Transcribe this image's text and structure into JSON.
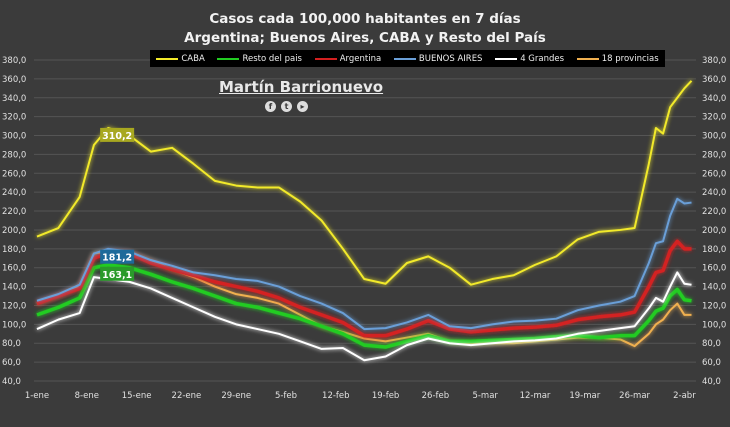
{
  "chart_data": {
    "type": "line",
    "title": "Casos cada 100,000  habitantes en 7 días",
    "subtitle": "Argentina; Buenos Aires, CABA y Resto del País",
    "xlabel": "",
    "ylabel": "",
    "ylim": [
      40,
      380
    ],
    "yticks": [
      "40,0",
      "60,0",
      "80,0",
      "100,0",
      "120,0",
      "140,0",
      "160,0",
      "180,0",
      "200,0",
      "220,0",
      "240,0",
      "260,0",
      "280,0",
      "300,0",
      "320,0",
      "340,0",
      "360,0",
      "380,0"
    ],
    "xticks": [
      "1-ene",
      "8-ene",
      "15-ene",
      "22-ene",
      "29-ene",
      "5-feb",
      "12-feb",
      "19-feb",
      "26-feb",
      "5-mar",
      "12-mar",
      "19-mar",
      "26-mar",
      "2-abr"
    ],
    "grid": true,
    "legend_position": "top",
    "x": [
      "1-ene",
      "4-ene",
      "7-ene",
      "9-ene",
      "11-ene",
      "14-ene",
      "17-ene",
      "20-ene",
      "23-ene",
      "26-ene",
      "29-ene",
      "1-feb",
      "4-feb",
      "7-feb",
      "10-feb",
      "13-feb",
      "16-feb",
      "19-feb",
      "22-feb",
      "25-feb",
      "28-feb",
      "3-mar",
      "6-mar",
      "9-mar",
      "12-mar",
      "15-mar",
      "18-mar",
      "21-mar",
      "24-mar",
      "26-mar",
      "28-mar",
      "29-mar",
      "30-mar",
      "31-mar",
      "1-abr",
      "2-abr",
      "3-abr"
    ],
    "series": [
      {
        "name": "CABA",
        "color": "#f2ea2a",
        "values": [
          193,
          202,
          235,
          290,
          308,
          300,
          283,
          287,
          270,
          252,
          247,
          245,
          245,
          230,
          210,
          180,
          148,
          143,
          165,
          172,
          160,
          142,
          148,
          152,
          163,
          172,
          190,
          198,
          200,
          202,
          270,
          308,
          302,
          330,
          340,
          350,
          358
        ]
      },
      {
        "name": "Resto del pais",
        "color": "#22cc22",
        "values": [
          110,
          118,
          128,
          160,
          163,
          160,
          153,
          145,
          138,
          130,
          122,
          118,
          112,
          106,
          98,
          90,
          78,
          76,
          82,
          88,
          82,
          82,
          83,
          84,
          85,
          87,
          88,
          86,
          88,
          88,
          104,
          114,
          117,
          130,
          137,
          126,
          125
        ]
      },
      {
        "name": "Argentina",
        "color": "#d42020",
        "values": [
          122,
          130,
          138,
          170,
          176,
          175,
          165,
          158,
          152,
          145,
          140,
          135,
          128,
          118,
          110,
          102,
          88,
          88,
          95,
          104,
          95,
          92,
          94,
          96,
          97,
          99,
          105,
          108,
          110,
          113,
          140,
          155,
          157,
          178,
          188,
          180,
          180
        ]
      },
      {
        "name": "BUENOS AIRES",
        "color": "#6a9fd8",
        "values": [
          125,
          132,
          142,
          175,
          180,
          177,
          168,
          162,
          155,
          152,
          148,
          146,
          140,
          130,
          122,
          112,
          95,
          96,
          102,
          110,
          98,
          96,
          100,
          103,
          104,
          106,
          115,
          120,
          124,
          130,
          165,
          186,
          188,
          215,
          233,
          228,
          229
        ]
      },
      {
        "name": "4 Grandes",
        "color": "#ffffff",
        "values": [
          95,
          105,
          112,
          150,
          148,
          145,
          138,
          128,
          118,
          108,
          100,
          95,
          90,
          82,
          74,
          75,
          62,
          66,
          78,
          85,
          80,
          78,
          80,
          82,
          83,
          85,
          90,
          93,
          96,
          98,
          117,
          128,
          124,
          140,
          155,
          143,
          142
        ]
      },
      {
        "name": "18 provincias",
        "color": "#f0b050",
        "values": [
          122,
          130,
          140,
          175,
          177,
          176,
          168,
          158,
          150,
          140,
          132,
          128,
          122,
          110,
          98,
          92,
          85,
          82,
          86,
          90,
          82,
          80,
          80,
          80,
          82,
          84,
          86,
          86,
          84,
          77,
          90,
          100,
          105,
          115,
          122,
          110,
          110
        ]
      }
    ],
    "annotations": [
      {
        "text": "310,2",
        "series": "CABA",
        "color": "#a8a820"
      },
      {
        "text": "181,2",
        "series": "BUENOS AIRES",
        "color": "#1e6a9a"
      },
      {
        "text": "163,1",
        "series": "Resto del pais",
        "color": "#2a9a2a"
      }
    ]
  },
  "author": {
    "name": "Martín Barrionuevo",
    "icons": [
      "facebook-icon",
      "twitter-icon",
      "youtube-icon"
    ]
  }
}
